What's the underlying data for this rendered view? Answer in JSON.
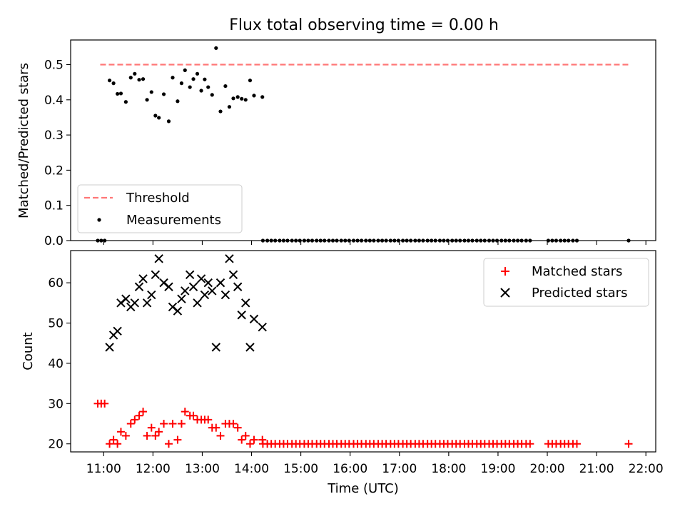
{
  "chart_data": [
    {
      "type": "scatter",
      "title": "Flux total observing time = 0.00 h",
      "ylabel": "Matched/Predicted stars",
      "xlabel": "",
      "ylim": [
        0,
        0.57
      ],
      "yticks": [
        "0.0",
        "0.1",
        "0.2",
        "0.3",
        "0.4",
        "0.5"
      ],
      "ytick_values": [
        0,
        0.1,
        0.2,
        0.3,
        0.4,
        0.5
      ],
      "grid": false,
      "legend_placement": "lower-left",
      "series": [
        {
          "name": "Threshold",
          "style": "dashed-line",
          "color": "#ff7777",
          "x": [
            10.93,
            21.65
          ],
          "y": [
            0.5,
            0.5
          ]
        },
        {
          "name": "Measurements",
          "style": "dots",
          "color": "#000000",
          "x": [
            10.88,
            10.95,
            11.02,
            11.12,
            11.2,
            11.28,
            11.35,
            11.45,
            11.55,
            11.63,
            11.72,
            11.8,
            11.88,
            11.97,
            12.05,
            12.12,
            12.22,
            12.32,
            12.4,
            12.5,
            12.58,
            12.65,
            12.75,
            12.82,
            12.9,
            12.98,
            13.05,
            13.12,
            13.2,
            13.28,
            13.37,
            13.47,
            13.55,
            13.63,
            13.72,
            13.8,
            13.88,
            13.97,
            14.05,
            14.22,
            14.23,
            14.32,
            14.4,
            14.48,
            14.57,
            14.65,
            14.73,
            14.82,
            14.9,
            14.98,
            15.07,
            15.15,
            15.23,
            15.32,
            15.4,
            15.48,
            15.57,
            15.65,
            15.73,
            15.82,
            15.9,
            15.98,
            16.07,
            16.15,
            16.23,
            16.32,
            16.4,
            16.48,
            16.57,
            16.65,
            16.73,
            16.82,
            16.9,
            16.98,
            17.07,
            17.15,
            17.23,
            17.32,
            17.4,
            17.48,
            17.57,
            17.65,
            17.73,
            17.82,
            17.9,
            17.98,
            18.07,
            18.15,
            18.23,
            18.32,
            18.4,
            18.48,
            18.57,
            18.65,
            18.73,
            18.82,
            18.9,
            18.98,
            19.07,
            19.15,
            19.23,
            19.32,
            19.4,
            19.48,
            19.57,
            19.65,
            20.02,
            20.1,
            20.18,
            20.27,
            20.35,
            20.43,
            20.52,
            20.6,
            21.65
          ],
          "y": [
            0.0,
            0.0,
            0.0,
            0.455,
            0.447,
            0.417,
            0.418,
            0.394,
            0.463,
            0.474,
            0.457,
            0.459,
            0.4,
            0.422,
            0.355,
            0.349,
            0.416,
            0.339,
            0.463,
            0.396,
            0.447,
            0.484,
            0.436,
            0.459,
            0.474,
            0.426,
            0.458,
            0.436,
            0.414,
            0.547,
            0.367,
            0.439,
            0.38,
            0.404,
            0.408,
            0.403,
            0.4,
            0.455,
            0.412,
            0.408,
            0.0,
            0.0,
            0.0,
            0.0,
            0.0,
            0.0,
            0.0,
            0.0,
            0.0,
            0.0,
            0.0,
            0.0,
            0.0,
            0.0,
            0.0,
            0.0,
            0.0,
            0.0,
            0.0,
            0.0,
            0.0,
            0.0,
            0.0,
            0.0,
            0.0,
            0.0,
            0.0,
            0.0,
            0.0,
            0.0,
            0.0,
            0.0,
            0.0,
            0.0,
            0.0,
            0.0,
            0.0,
            0.0,
            0.0,
            0.0,
            0.0,
            0.0,
            0.0,
            0.0,
            0.0,
            0.0,
            0.0,
            0.0,
            0.0,
            0.0,
            0.0,
            0.0,
            0.0,
            0.0,
            0.0,
            0.0,
            0.0,
            0.0,
            0.0,
            0.0,
            0.0,
            0.0,
            0.0,
            0.0,
            0.0,
            0.0,
            0.0,
            0.0,
            0.0,
            0.0,
            0.0,
            0.0,
            0.0,
            0.0,
            0.0
          ]
        }
      ]
    },
    {
      "type": "scatter",
      "title": "",
      "ylabel": "Count",
      "xlabel": "Time (UTC)",
      "ylim": [
        18,
        68
      ],
      "yticks": [
        "20",
        "30",
        "40",
        "50",
        "60"
      ],
      "ytick_values": [
        20,
        30,
        40,
        50,
        60
      ],
      "xlim": [
        10.33,
        22.2
      ],
      "xticks": [
        "11:00",
        "12:00",
        "13:00",
        "14:00",
        "15:00",
        "16:00",
        "17:00",
        "18:00",
        "19:00",
        "20:00",
        "21:00",
        "22:00"
      ],
      "xtick_values": [
        11,
        12,
        13,
        14,
        15,
        16,
        17,
        18,
        19,
        20,
        21,
        22
      ],
      "grid": false,
      "legend_placement": "upper-right",
      "series": [
        {
          "name": "Matched stars",
          "marker": "plus",
          "color": "#ff0000",
          "x": [
            10.88,
            10.95,
            11.02,
            11.12,
            11.2,
            11.28,
            11.35,
            11.45,
            11.55,
            11.63,
            11.72,
            11.8,
            11.88,
            11.97,
            12.05,
            12.12,
            12.22,
            12.32,
            12.4,
            12.5,
            12.58,
            12.65,
            12.75,
            12.82,
            12.9,
            12.98,
            13.05,
            13.12,
            13.2,
            13.28,
            13.37,
            13.47,
            13.55,
            13.63,
            13.72,
            13.8,
            13.88,
            13.97,
            14.05,
            14.22,
            14.23,
            14.32,
            14.4,
            14.48,
            14.57,
            14.65,
            14.73,
            14.82,
            14.9,
            14.98,
            15.07,
            15.15,
            15.23,
            15.32,
            15.4,
            15.48,
            15.57,
            15.65,
            15.73,
            15.82,
            15.9,
            15.98,
            16.07,
            16.15,
            16.23,
            16.32,
            16.4,
            16.48,
            16.57,
            16.65,
            16.73,
            16.82,
            16.9,
            16.98,
            17.07,
            17.15,
            17.23,
            17.32,
            17.4,
            17.48,
            17.57,
            17.65,
            17.73,
            17.82,
            17.9,
            17.98,
            18.07,
            18.15,
            18.23,
            18.32,
            18.4,
            18.48,
            18.57,
            18.65,
            18.73,
            18.82,
            18.9,
            18.98,
            19.07,
            19.15,
            19.23,
            19.32,
            19.4,
            19.48,
            19.57,
            19.65,
            20.02,
            20.1,
            20.18,
            20.27,
            20.35,
            20.43,
            20.52,
            20.6,
            21.65
          ],
          "y": [
            30,
            30,
            30,
            20,
            21,
            20,
            23,
            22,
            25,
            26,
            27,
            28,
            22,
            24,
            22,
            23,
            25,
            20,
            25,
            21,
            25,
            28,
            27,
            27,
            26,
            26,
            26,
            26,
            24,
            24,
            22,
            25,
            25,
            25,
            24,
            21,
            22,
            20,
            21,
            21,
            20,
            20,
            20,
            20,
            20,
            20,
            20,
            20,
            20,
            20,
            20,
            20,
            20,
            20,
            20,
            20,
            20,
            20,
            20,
            20,
            20,
            20,
            20,
            20,
            20,
            20,
            20,
            20,
            20,
            20,
            20,
            20,
            20,
            20,
            20,
            20,
            20,
            20,
            20,
            20,
            20,
            20,
            20,
            20,
            20,
            20,
            20,
            20,
            20,
            20,
            20,
            20,
            20,
            20,
            20,
            20,
            20,
            20,
            20,
            20,
            20,
            20,
            20,
            20,
            20,
            20,
            20,
            20,
            20,
            20,
            20,
            20,
            20,
            20,
            20
          ]
        },
        {
          "name": "Predicted stars",
          "marker": "x",
          "color": "#000000",
          "x": [
            11.12,
            11.2,
            11.28,
            11.35,
            11.45,
            11.55,
            11.63,
            11.72,
            11.8,
            11.88,
            11.97,
            12.05,
            12.12,
            12.22,
            12.32,
            12.4,
            12.5,
            12.58,
            12.65,
            12.75,
            12.82,
            12.9,
            12.98,
            13.05,
            13.12,
            13.2,
            13.28,
            13.37,
            13.47,
            13.55,
            13.63,
            13.72,
            13.8,
            13.88,
            13.97,
            14.05,
            14.22
          ],
          "y": [
            44,
            47,
            48,
            55,
            56,
            54,
            55,
            59,
            61,
            55,
            57,
            62,
            66,
            60,
            59,
            54,
            53,
            56,
            58,
            62,
            59,
            55,
            61,
            57,
            60,
            58,
            44,
            60,
            57,
            66,
            62,
            59,
            52,
            55,
            44,
            51,
            49
          ]
        }
      ]
    }
  ]
}
